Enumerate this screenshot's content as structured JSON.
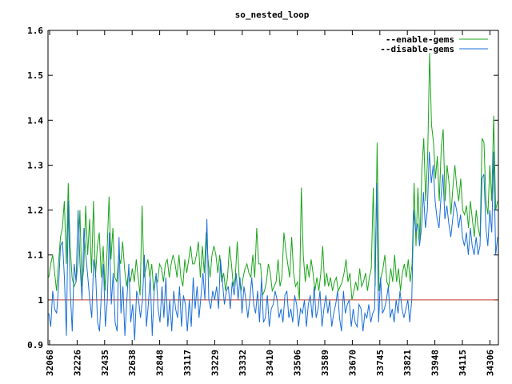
{
  "chart_data": {
    "type": "line",
    "title": "so_nested_loop",
    "xlabel": "",
    "ylabel": "",
    "ylim": [
      0.9,
      1.6
    ],
    "yticks": [
      "0.9",
      "1",
      "1.1",
      "1.2",
      "1.3",
      "1.4",
      "1.5",
      "1.6"
    ],
    "xtick_labels": [
      "32068",
      "32226",
      "32435",
      "32638",
      "32848",
      "33117",
      "33229",
      "33332",
      "33410",
      "33506",
      "33589",
      "33670",
      "33745",
      "33821",
      "33948",
      "34115",
      "34306"
    ],
    "grid": false,
    "legend_position": "top-right",
    "reference_line": {
      "value": 1.0,
      "color": "#c0392b"
    },
    "series": [
      {
        "name": "--enable-gems",
        "color": "#1aa51a",
        "values": [
          1.05,
          1.08,
          1.1,
          1.06,
          1.02,
          1.08,
          1.14,
          1.16,
          1.22,
          1.08,
          1.26,
          1.12,
          1.05,
          1.03,
          1.04,
          1.08,
          1.2,
          1.03,
          1.07,
          1.21,
          1.1,
          1.18,
          1.06,
          1.22,
          1.05,
          1.12,
          1.15,
          1.05,
          1.12,
          1.02,
          1.11,
          1.23,
          1.09,
          1.16,
          1.05,
          1.04,
          1.1,
          1.08,
          1.13,
          1.07,
          1.03,
          1.06,
          1.04,
          1.07,
          1.04,
          1.09,
          1.05,
          1.01,
          1.21,
          1.05,
          1.07,
          1.09,
          1.05,
          1.08,
          1.02,
          1.05,
          1.04,
          1.08,
          1.07,
          1.04,
          1.08,
          1.09,
          1.05,
          1.08,
          1.1,
          1.08,
          1.05,
          1.1,
          1.05,
          1.03,
          1.09,
          1.06,
          1.09,
          1.12,
          1.08,
          1.08,
          1.1,
          1.13,
          1.05,
          1.12,
          1.06,
          1.15,
          1.09,
          1.05,
          1.1,
          1.12,
          1.1,
          1.06,
          1.1,
          1.04,
          1.06,
          1.02,
          1.05,
          1.12,
          1.08,
          1.03,
          1.05,
          1.13,
          1.05,
          1.02,
          1.05,
          1.07,
          1.08,
          1.06,
          1.05,
          1.1,
          1.05,
          1.16,
          1.08,
          1.08,
          1.01,
          1.02,
          1.04,
          1.08,
          1.06,
          1.02,
          1.03,
          1.04,
          1.09,
          1.03,
          1.05,
          1.15,
          1.11,
          1.08,
          1.05,
          1.14,
          1.06,
          1.03,
          1.04,
          1.0,
          1.25,
          1.1,
          1.04,
          1.08,
          1.05,
          1.09,
          1.06,
          1.02,
          1.05,
          1.02,
          1.06,
          1.12,
          1.03,
          1.06,
          1.03,
          1.05,
          1.02,
          1.04,
          1.05,
          1.02,
          1.03,
          1.04,
          1.06,
          1.09,
          1.04,
          1.06,
          1.0,
          1.02,
          1.04,
          1.02,
          1.07,
          1.03,
          1.04,
          1.06,
          1.02,
          1.05,
          1.07,
          1.25,
          1.03,
          1.35,
          1.02,
          1.05,
          1.07,
          1.1,
          1.04,
          1.03,
          1.07,
          1.04,
          1.1,
          1.04,
          1.07,
          1.02,
          1.06,
          1.08,
          1.05,
          1.09,
          1.04,
          1.08,
          1.26,
          1.12,
          1.25,
          1.13,
          1.29,
          1.36,
          1.22,
          1.32,
          1.55,
          1.39,
          1.35,
          1.27,
          1.32,
          1.22,
          1.34,
          1.38,
          1.22,
          1.3,
          1.26,
          1.19,
          1.25,
          1.3,
          1.25,
          1.22,
          1.27,
          1.2,
          1.19,
          1.21,
          1.16,
          1.22,
          1.18,
          1.14,
          1.2,
          1.16,
          1.14,
          1.36,
          1.35,
          1.22,
          1.19,
          1.3,
          1.22,
          1.41,
          1.2,
          1.22
        ]
      },
      {
        "name": "--disable-gems",
        "color": "#1a6fd8",
        "values": [
          0.97,
          0.94,
          1.02,
          0.98,
          0.97,
          1.03,
          1.12,
          1.13,
          1.05,
          0.92,
          1.22,
          1.02,
          0.93,
          1.08,
          1.04,
          1.2,
          1.08,
          1.0,
          1.16,
          1.1,
          1.05,
          1.0,
          0.96,
          1.09,
          1.06,
          0.95,
          0.93,
          1.02,
          1.08,
          0.94,
          1.0,
          1.15,
          0.99,
          1.06,
          0.95,
          0.93,
          1.14,
          0.97,
          1.03,
          0.92,
          1.0,
          1.08,
          0.95,
          0.99,
          0.91,
          1.02,
          1.0,
          0.96,
          1.0,
          1.1,
          0.94,
          0.99,
          1.05,
          0.92,
          1.02,
          1.06,
          0.98,
          0.95,
          1.03,
          0.96,
          1.05,
          0.94,
          1.0,
          0.93,
          1.02,
          0.98,
          0.96,
          1.03,
          0.94,
          1.01,
          0.99,
          0.93,
          1.0,
          0.94,
          1.05,
          0.98,
          1.03,
          0.96,
          1.01,
          1.06,
          1.0,
          1.18,
          1.0,
          0.98,
          1.02,
          1.0,
          1.03,
          0.98,
          1.09,
          1.04,
          0.99,
          1.02,
          1.03,
          0.98,
          1.04,
          1.01,
          1.06,
          1.0,
          1.05,
          0.97,
          1.03,
          1.0,
          0.96,
          1.0,
          1.05,
          0.99,
          0.97,
          1.02,
          0.95,
          1.05,
          0.95,
          0.96,
          1.01,
          0.94,
          0.98,
          0.99,
          1.02,
          1.0,
          0.96,
          0.98,
          0.95,
          1.01,
          1.02,
          0.96,
          0.98,
          0.95,
          1.01,
          0.99,
          0.94,
          0.98,
          0.97,
          1.0,
          0.94,
          0.99,
          1.01,
          0.96,
          1.03,
          0.96,
          0.98,
          1.02,
          0.94,
          0.98,
          1.01,
          0.97,
          1.0,
          0.94,
          0.97,
          0.99,
          1.02,
          0.96,
          0.93,
          1.02,
          0.97,
          0.99,
          1.0,
          0.94,
          0.98,
          0.95,
          0.94,
          0.99,
          0.98,
          0.93,
          0.97,
          0.96,
          0.99,
          0.95,
          0.97,
          0.98,
          1.26,
          0.95,
          1.05,
          0.97,
          0.98,
          1.0,
          1.03,
          0.96,
          0.98,
          0.95,
          1.0,
          0.97,
          1.02,
          0.98,
          0.96,
          0.98,
          1.0,
          0.95,
          1.0,
          1.2,
          1.15,
          1.17,
          1.12,
          1.16,
          1.24,
          1.16,
          1.2,
          1.33,
          1.26,
          1.3,
          1.22,
          1.18,
          1.16,
          1.23,
          1.28,
          1.18,
          1.21,
          1.17,
          1.14,
          1.18,
          1.22,
          1.2,
          1.16,
          1.19,
          1.14,
          1.12,
          1.15,
          1.1,
          1.16,
          1.12,
          1.1,
          1.14,
          1.1,
          1.12,
          1.27,
          1.28,
          1.16,
          1.12,
          1.2,
          1.15,
          1.33,
          1.1,
          1.14
        ]
      }
    ]
  }
}
